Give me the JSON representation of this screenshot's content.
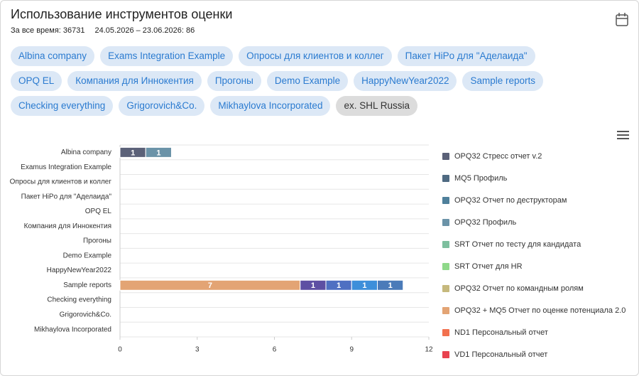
{
  "header": {
    "title": "Использование инструментов оценки",
    "all_time": "За все время: 36731",
    "period": "24.05.2026 – 23.06.2026: 86"
  },
  "chips": {
    "items": [
      "Albina company",
      "Exams Integration Example",
      "Опросы для клиентов и коллег",
      "Пакет HiPo для \"Аделаида\"",
      "OPQ EL",
      "Компания для Иннокентия",
      "Прогоны",
      "Demo Example",
      "HappyNewYear2022",
      "Sample reports",
      "Checking everything",
      "Grigorovich&Co.",
      "Mikhaylova Incorporated",
      "ex. SHL Russia"
    ],
    "selected_index": 13
  },
  "chart_data": {
    "type": "hbar-stacked",
    "categories": [
      "Albina company",
      "Examus Integration Example",
      "Опросы для клиентов и коллег",
      "Пакет HiPo для \"Аделаида\"",
      "OPQ EL",
      "Компания для Иннокентия",
      "Прогоны",
      "Demo Example",
      "HappyNewYear2022",
      "Sample reports",
      "Checking everything",
      "Grigorovich&Co.",
      "Mikhaylova Incorporated"
    ],
    "series": [
      {
        "name": "OPQ32 Стресс отчет v.2",
        "color": "#5b6178",
        "values": [
          1,
          null,
          null,
          null,
          null,
          null,
          null,
          null,
          null,
          null,
          null,
          null,
          null
        ]
      },
      {
        "name": "MQ5 Профиль",
        "color": "#4f6a82",
        "values": [
          null,
          null,
          null,
          null,
          null,
          null,
          null,
          null,
          null,
          null,
          null,
          null,
          null
        ]
      },
      {
        "name": "OPQ32 Отчет по деструкторам",
        "color": "#4f809b",
        "values": [
          null,
          null,
          null,
          null,
          null,
          null,
          null,
          null,
          null,
          null,
          null,
          null,
          null
        ]
      },
      {
        "name": "OPQ32 Профиль",
        "color": "#6b93a8",
        "values": [
          1,
          null,
          null,
          null,
          null,
          null,
          null,
          null,
          null,
          null,
          null,
          null,
          null
        ]
      },
      {
        "name": "SRT Отчет по тесту для кандидата",
        "color": "#7dbf9e",
        "values": [
          null,
          null,
          null,
          null,
          null,
          null,
          null,
          null,
          null,
          null,
          null,
          null,
          null
        ]
      },
      {
        "name": "SRT Отчет для HR",
        "color": "#8fd98a",
        "values": [
          null,
          null,
          null,
          null,
          null,
          null,
          null,
          null,
          null,
          null,
          null,
          null,
          null
        ]
      },
      {
        "name": "OPQ32 Отчет по командным ролям",
        "color": "#c6b97d",
        "values": [
          null,
          null,
          null,
          null,
          null,
          null,
          null,
          null,
          null,
          null,
          null,
          null,
          null
        ]
      },
      {
        "name": "OPQ32 + MQ5 Отчет по оценке потенциала 2.0",
        "color": "#e3a474",
        "values": [
          null,
          null,
          null,
          null,
          null,
          null,
          null,
          null,
          null,
          7,
          null,
          null,
          null
        ]
      },
      {
        "name": "ND1 Персональный отчет",
        "color": "#f2714f",
        "values": [
          null,
          null,
          null,
          null,
          null,
          null,
          null,
          null,
          null,
          null,
          null,
          null,
          null
        ]
      },
      {
        "name": "VD1 Персональный отчет",
        "color": "#e8434f",
        "values": [
          null,
          null,
          null,
          null,
          null,
          null,
          null,
          null,
          null,
          null,
          null,
          null,
          null
        ]
      },
      {
        "color": "#5d4fa3",
        "values": [
          null,
          null,
          null,
          null,
          null,
          null,
          null,
          null,
          null,
          1,
          null,
          null,
          null
        ]
      },
      {
        "color": "#4f70c2",
        "values": [
          null,
          null,
          null,
          null,
          null,
          null,
          null,
          null,
          null,
          1,
          null,
          null,
          null
        ]
      },
      {
        "color": "#3d8fda",
        "values": [
          null,
          null,
          null,
          null,
          null,
          null,
          null,
          null,
          null,
          1,
          null,
          null,
          null
        ]
      },
      {
        "color": "#4b7bb9",
        "values": [
          null,
          null,
          null,
          null,
          null,
          null,
          null,
          null,
          null,
          1,
          null,
          null,
          null
        ]
      }
    ],
    "xlim": [
      0,
      12
    ],
    "xticks": [
      0,
      3,
      6,
      9,
      12
    ],
    "grid": true
  }
}
